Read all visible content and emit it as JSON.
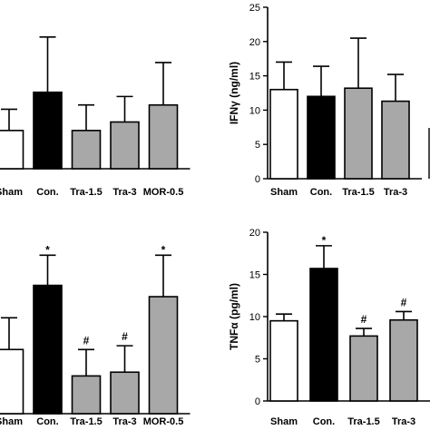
{
  "chart_data": [
    {
      "id": "top-left",
      "type": "bar",
      "categories": [
        "Sham",
        "Con.",
        "Tra-1.5",
        "Tra-3",
        "MOR-0.5"
      ],
      "values": [
        9,
        18,
        9,
        11,
        15
      ],
      "errors": [
        5,
        13,
        6,
        6,
        10
      ],
      "fills": [
        "#ffffff",
        "#000000",
        "#a8a8a8",
        "#a8a8a8",
        "#a8a8a8"
      ],
      "significance": [
        "",
        "",
        "",
        "",
        ""
      ],
      "ylabel": "",
      "ylim": [
        0,
        38
      ],
      "yticks": [],
      "grid": false
    },
    {
      "id": "top-right",
      "type": "bar",
      "categories": [
        "Sham",
        "Con.",
        "Tra-1.5",
        "Tra-3"
      ],
      "values": [
        13,
        12,
        13.2,
        11.3
      ],
      "errors": [
        4,
        4.4,
        7.3,
        3.9
      ],
      "fills": [
        "#ffffff",
        "#000000",
        "#a8a8a8",
        "#a8a8a8"
      ],
      "significance": [
        "",
        "",
        "",
        ""
      ],
      "ylabel": "IFNγ (ng/ml)",
      "ylim": [
        0,
        25
      ],
      "yticks": [
        "0",
        "5",
        "10",
        "15",
        "20",
        "25"
      ],
      "grid": false
    },
    {
      "id": "bottom-left",
      "type": "bar",
      "categories": [
        "Sham",
        "Con.",
        "Tra-1.5",
        "Tra-3",
        "MOR-0.5"
      ],
      "values": [
        8.5,
        17,
        5,
        5.5,
        15.5
      ],
      "errors": [
        4.2,
        4,
        3.5,
        3.5,
        5.5
      ],
      "fills": [
        "#ffffff",
        "#000000",
        "#a8a8a8",
        "#a8a8a8",
        "#a8a8a8"
      ],
      "significance": [
        "",
        "*",
        "#",
        "#",
        "*"
      ],
      "ylabel": "",
      "ylim": [
        0,
        25
      ],
      "yticks": [],
      "grid": false
    },
    {
      "id": "bottom-right",
      "type": "bar",
      "categories": [
        "Sham",
        "Con.",
        "Tra-1.5",
        "Tra-3"
      ],
      "values": [
        9.5,
        15.7,
        7.7,
        9.6
      ],
      "errors": [
        0.8,
        2.7,
        0.9,
        1
      ],
      "fills": [
        "#ffffff",
        "#000000",
        "#a8a8a8",
        "#a8a8a8"
      ],
      "significance": [
        "",
        "*",
        "#",
        "#"
      ],
      "ylabel": "TNFα (pg/ml)",
      "ylim": [
        0,
        20
      ],
      "yticks": [
        "0",
        "5",
        "10",
        "15",
        "20"
      ],
      "grid": false
    }
  ]
}
